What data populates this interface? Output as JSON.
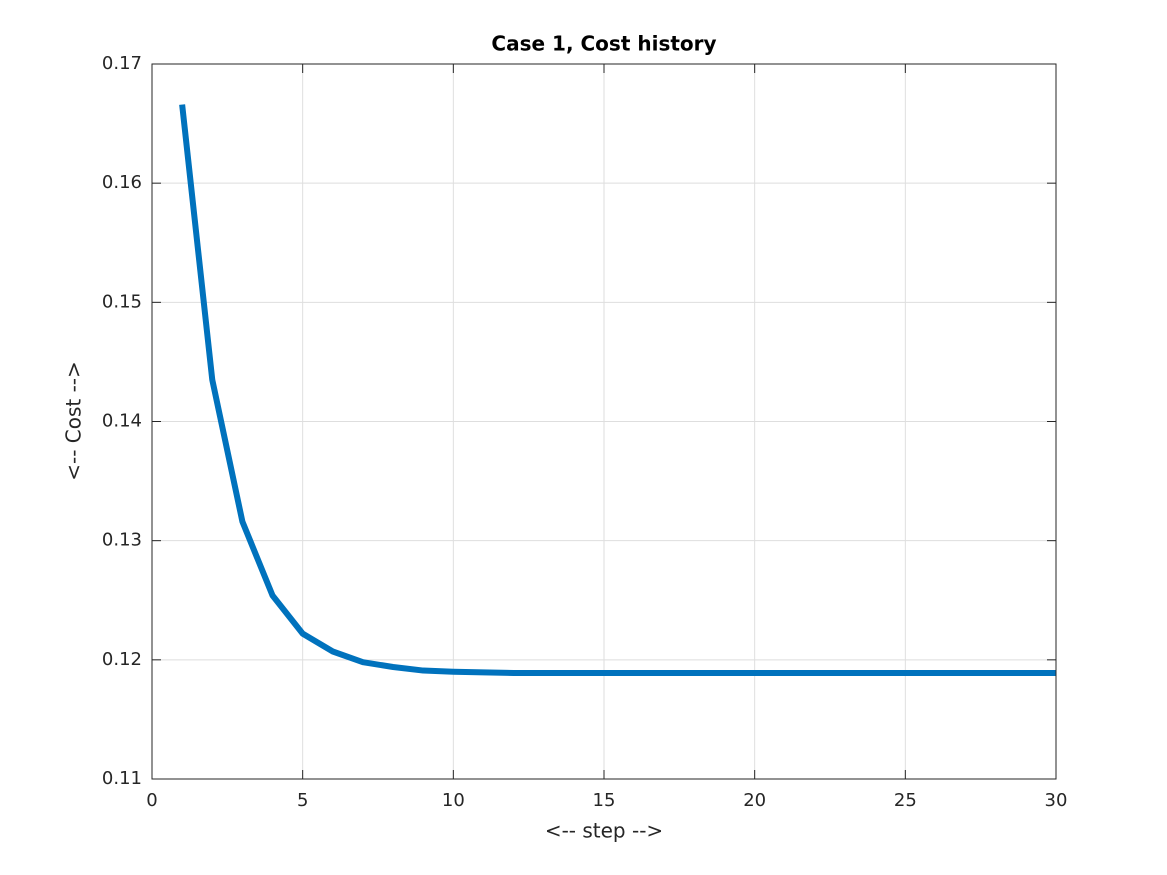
{
  "chart_data": {
    "type": "line",
    "title": "Case 1, Cost history",
    "x_label": "<-- step -->",
    "y_label": "<-- Cost -->",
    "x": [
      1,
      2,
      3,
      4,
      5,
      6,
      7,
      8,
      9,
      10,
      11,
      12,
      13,
      14,
      15,
      16,
      17,
      18,
      19,
      20,
      21,
      22,
      23,
      24,
      25,
      26,
      27,
      28,
      29,
      30
    ],
    "series": [
      {
        "name": "Cost",
        "color": "#0072bd",
        "values": [
          0.1666,
          0.1435,
          0.1316,
          0.1254,
          0.1222,
          0.1207,
          0.1198,
          0.1194,
          0.1191,
          0.119,
          0.11895,
          0.1189,
          0.1189,
          0.1189,
          0.1189,
          0.1189,
          0.1189,
          0.1189,
          0.1189,
          0.1189,
          0.1189,
          0.1189,
          0.1189,
          0.1189,
          0.1189,
          0.1189,
          0.1189,
          0.1189,
          0.1189,
          0.1189
        ]
      }
    ],
    "xlim": [
      0,
      30
    ],
    "xticks": [
      0,
      5,
      10,
      15,
      20,
      25,
      30
    ],
    "ylim": [
      0.11,
      0.17
    ],
    "yticks": [
      0.11,
      0.12,
      0.13,
      0.14,
      0.15,
      0.16,
      0.17
    ],
    "grid": true
  }
}
